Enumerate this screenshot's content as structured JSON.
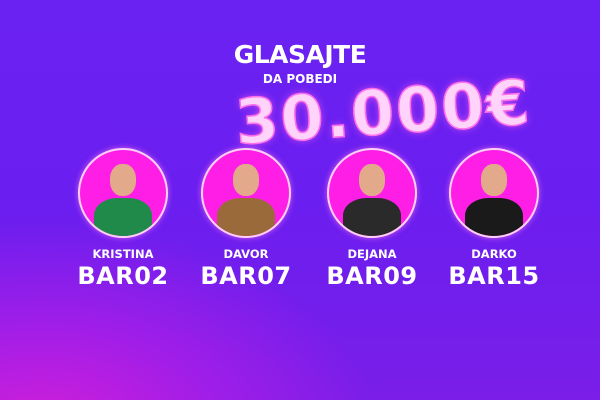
{
  "header": {
    "title": "GLASAJTE",
    "subtitle": "DA POBEDI",
    "prize": "30.000€"
  },
  "candidates": [
    {
      "name": "KRISTINA",
      "code": "BAR02"
    },
    {
      "name": "DAVOR",
      "code": "BAR07"
    },
    {
      "name": "DEJANA",
      "code": "BAR09"
    },
    {
      "name": "DARKO",
      "code": "BAR15"
    }
  ],
  "colors": {
    "accent": "#ff1ee6",
    "background": "#6a22f2"
  }
}
